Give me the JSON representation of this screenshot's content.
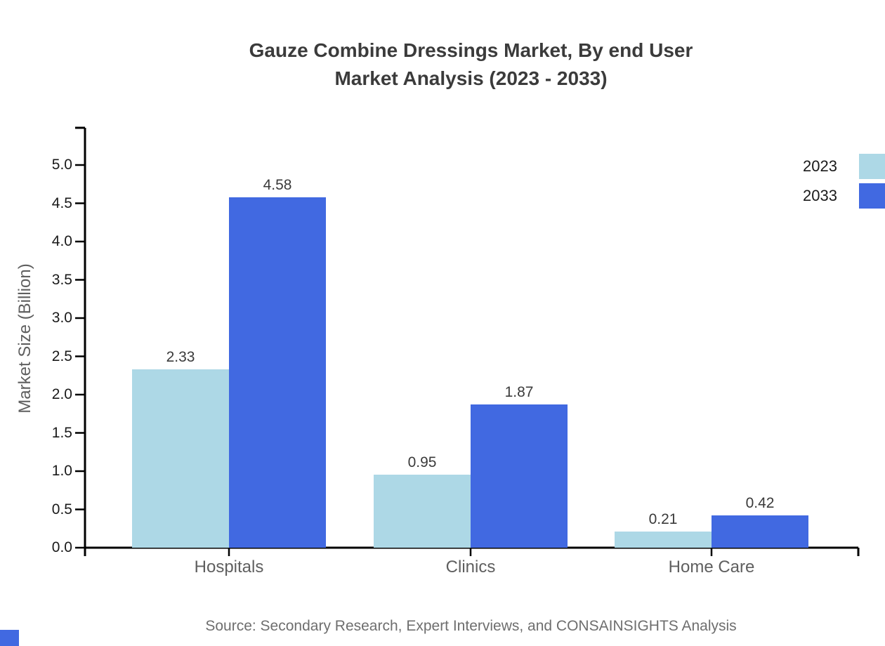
{
  "title": {
    "line1": "Gauze Combine Dressings Market, By end User",
    "line2": "Market Analysis (2023 - 2033)"
  },
  "source": "Source: Secondary Research, Expert Interviews, and CONSAINSIGHTS Analysis",
  "chart_data": {
    "type": "bar",
    "categories": [
      "Hospitals",
      "Clinics",
      "Home Care"
    ],
    "series": [
      {
        "name": "2023",
        "color": "#ADD8E6",
        "values": [
          2.33,
          0.95,
          0.21
        ]
      },
      {
        "name": "2033",
        "color": "#4169E1",
        "values": [
          4.58,
          1.87,
          0.42
        ]
      }
    ],
    "title": "Gauze Combine Dressings Market, By end User Market Analysis (2023 - 2033)",
    "xlabel": "",
    "ylabel": "Market Size (Billion)",
    "ylim": [
      0,
      5
    ],
    "ytick_step": 0.5,
    "grid": false,
    "legend_position": "upper-right",
    "value_labels": true
  },
  "colors": {
    "series_2023": "#ADD8E6",
    "series_2033": "#4169E1",
    "title_text": "#3b3b3b",
    "axis_text": "#5f5f5f",
    "tick_text": "#1a1a1a",
    "source_text": "#6e6e6e",
    "axis_line": "#000000",
    "watermark": "#4169E1"
  }
}
